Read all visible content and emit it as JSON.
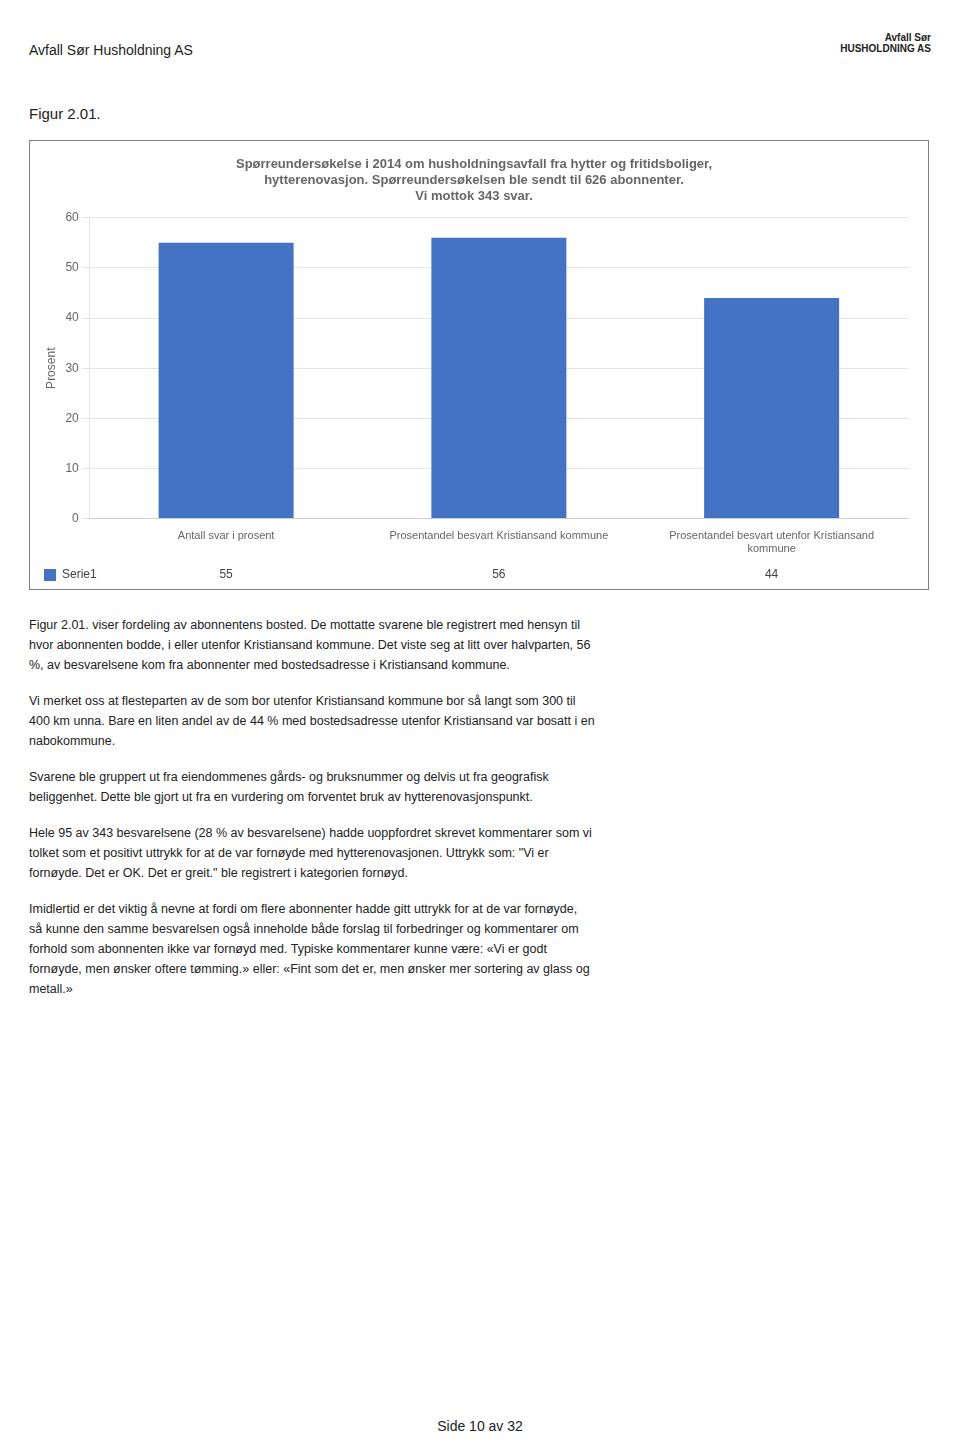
{
  "chart_data": {
    "type": "bar",
    "title": "Spørreundersøkelse i 2014 om husholdningsavfall fra hytter og fritidsboliger,\nhytterenovasjon. Spørreundersøkelsen ble sendt til 626 abonnenter.\nVi mottok 343 svar.",
    "categories": [
      "Antall svar i prosent",
      "Prosentandel besvart Kristiansand kommune",
      "Prosentandel besvart utenfor Kristiansand\nkommune"
    ],
    "series": [
      {
        "name": "Serie1",
        "color": "#4472C4",
        "values": [
          55,
          56,
          44
        ]
      }
    ],
    "y_label": "Prosent",
    "ylim": [
      0,
      60
    ],
    "yticks": [
      0,
      10,
      20,
      30,
      40,
      50,
      60
    ],
    "grid": true,
    "data_labels": true,
    "annotations": [
      "Avfall Sør Husholdning AS",
      "Avfall Sør\nHUSHOLDNING AS",
      "Figur 2.01.",
      "Figur 2.01. viser fordeling av abonnentens bosted. De mottatte svarene ble registrert med hensyn til\nhvor abonnenten bodde, i eller utenfor Kristiansand kommune. Det viste seg at litt over halvparten, 56\n%, av besvarelsene kom fra abonnenter med bostedsadresse i Kristiansand kommune.",
      "Vi merket oss at flesteparten av de som bor utenfor Kristiansand kommune bor så langt som 300 til\n400 km unna. Bare en liten andel av de 44 % med bostedsadresse utenfor Kristiansand var bosatt i en\nnabokommune.",
      "Svarene ble gruppert ut fra eiendommenes gårds- og bruksnummer og delvis ut fra geografisk\nbeliggenhet. Dette ble gjort ut fra en vurdering om forventet bruk av hytterenovasjonspunkt.",
      "Hele 95 av 343 besvarelsene (28 % av besvarelsene) hadde uoppfordret skrevet kommentarer som vi\ntolket som et positivt uttrykk for at de var fornøyde med hytterenovasjonen. Uttrykk som: \"Vi er\nfornøyde. Det er OK. Det er greit.\" ble registrert i kategorien fornøyd.",
      "Imidlertid er det viktig å nevne at fordi om flere abonnenter hadde gitt uttrykk for at de var fornøyde,\nså kunne den samme besvarelsen også inneholde både forslag til forbedringer og kommentarer om\nforhold som abonnenten ikke var fornøyd med. Typiske kommentarer kunne være: «Vi er godt\nfornøyde, men ønsker oftere tømming.» eller: «Fint som det er, men ønsker mer sortering av glass og\nmetall.»",
      "Side 10 av 32"
    ]
  }
}
